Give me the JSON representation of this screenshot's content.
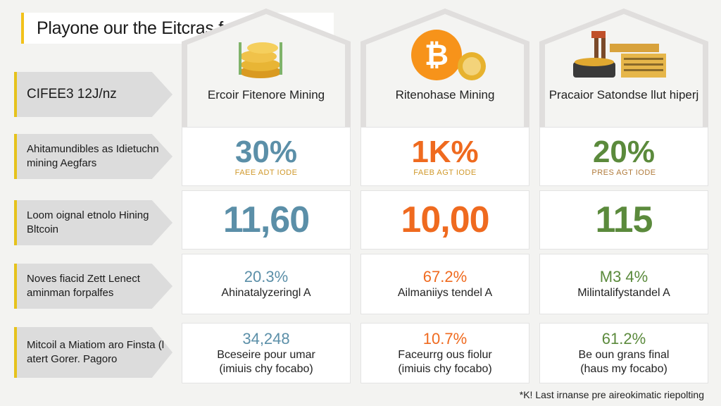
{
  "title": "Playone our the Eitcras forgjout",
  "colors": {
    "accent": "#f2c21b",
    "blue": "#5b8fa8",
    "orange": "#ef6a1f",
    "green": "#5b8a3c"
  },
  "rows": [
    {
      "label": "CIFEE3 12J/nz"
    },
    {
      "label": "Ahitamundibles as Idietuchn mining Aegfars"
    },
    {
      "label": "Loom oignal etnolo Hining Bltcoin"
    },
    {
      "label": "Noves fiacid Zett Lenect aminman forpalfes"
    },
    {
      "label": "Mitcoil a Miatiom aro Finsta (l atert Gorer. Pagoro"
    }
  ],
  "columns": [
    {
      "icon": "gold-coins-icon",
      "name": "Ercoir Fitenore Mining",
      "pct": "30%",
      "pct_sub": "FAEE ADT IODE",
      "value": "11,60",
      "stat": "20.3%",
      "stat_sub": "Ahinatalyzeringl A",
      "bottom_stat": "34,248",
      "bottom_line1": "Bceseire pour umar",
      "bottom_line2": "(imiuis chy focabo)"
    },
    {
      "icon": "bitcoin-icon",
      "name": "Ritenohase Mining",
      "pct": "1K%",
      "pct_sub": "FAEB AGT IODE",
      "value": "10,00",
      "stat": "67.2%",
      "stat_sub": "Ailmaniiys tendel A",
      "bottom_stat": "10.7%",
      "bottom_line1": "Faceurrg ous fiolur",
      "bottom_line2": "(imiuis chy focabo)"
    },
    {
      "icon": "mining-rig-icon",
      "name": "Pracaior Satondse llut hiperj",
      "pct": "20%",
      "pct_sub": "PRES AGT IODE",
      "value": "115",
      "stat": "M3 4%",
      "stat_sub": "Milintalifystandel A",
      "bottom_stat": "61.2%",
      "bottom_line1": "Be oun grans final",
      "bottom_line2": "(haus my focabo)"
    }
  ],
  "footnote": "*K! Last irnanse pre aireokimatic riepolting"
}
